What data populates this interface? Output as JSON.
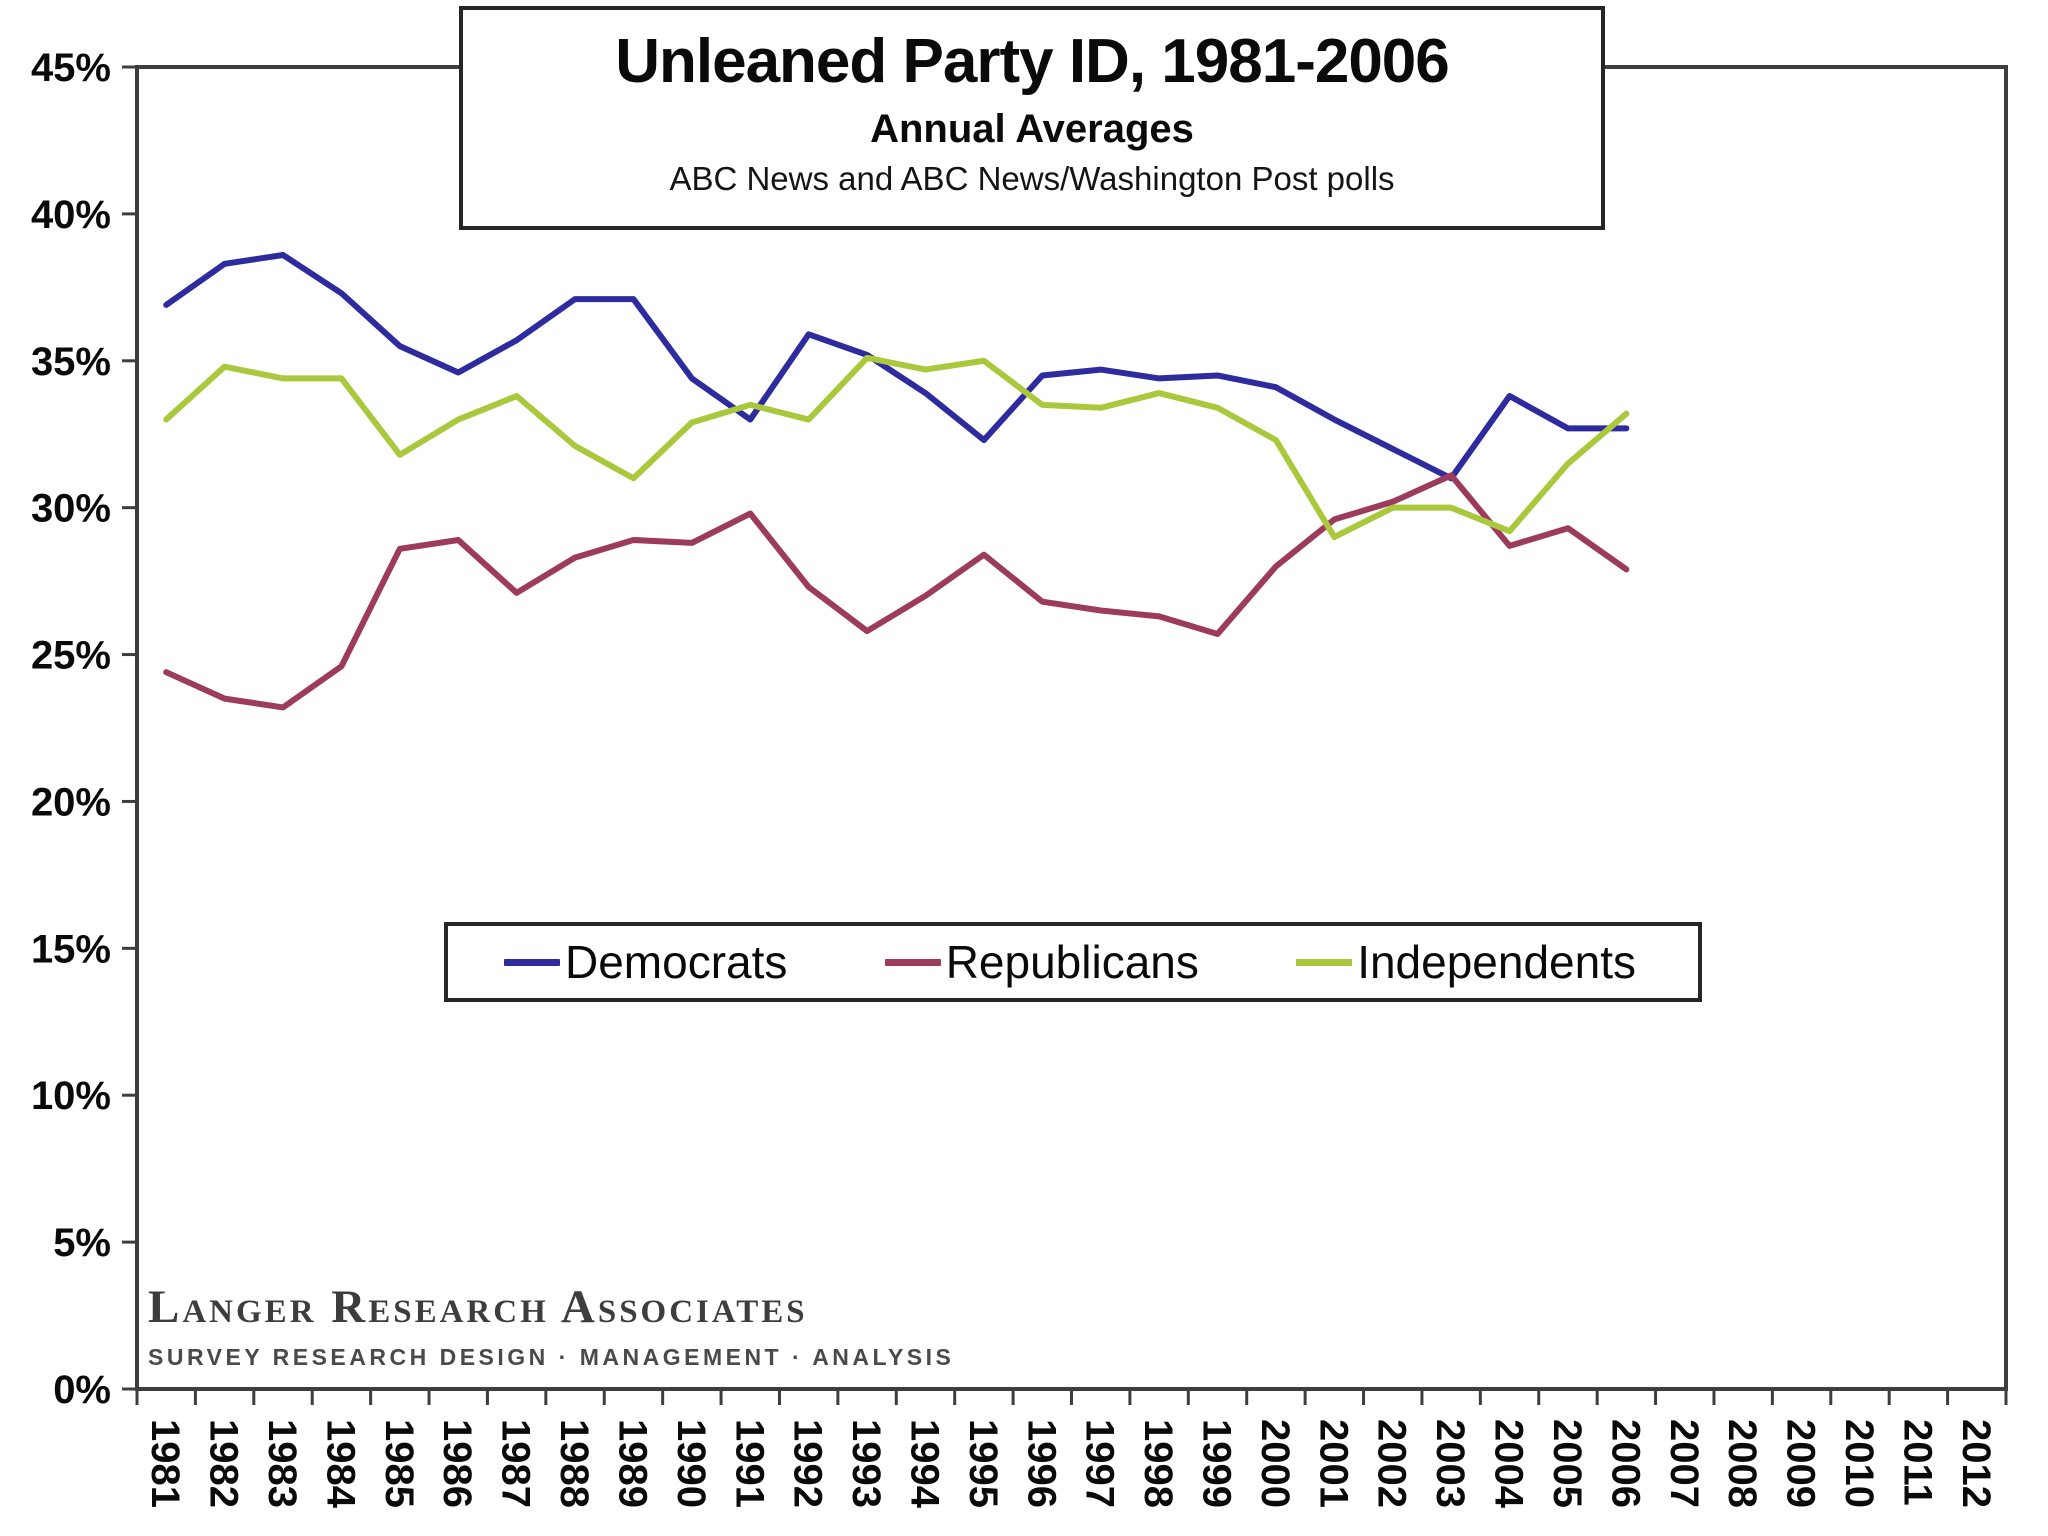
{
  "logo": {
    "name": "Langer Research Associates",
    "tagline": "SURVEY RESEARCH DESIGN · MANAGEMENT · ANALYSIS"
  },
  "frame_color": "#3e3e3e",
  "chart_data": {
    "type": "line",
    "title": "Unleaned Party ID, 1981-2006",
    "subtitle": "Annual Averages",
    "source": "ABC News and ABC News/Washington Post polls",
    "xlabel": "",
    "ylabel": "",
    "grid": false,
    "legend_position": "inside-center-bottom",
    "ylim": [
      0,
      45
    ],
    "y_tick_step": 5,
    "y_tick_labels": [
      "0%",
      "5%",
      "10%",
      "15%",
      "20%",
      "25%",
      "30%",
      "35%",
      "40%",
      "45%"
    ],
    "x_axis_years": [
      1981,
      1982,
      1983,
      1984,
      1985,
      1986,
      1987,
      1988,
      1989,
      1990,
      1991,
      1992,
      1993,
      1994,
      1995,
      1996,
      1997,
      1998,
      1999,
      2000,
      2001,
      2002,
      2003,
      2004,
      2005,
      2006,
      2007,
      2008,
      2009,
      2010,
      2011,
      2012
    ],
    "x": [
      1981,
      1982,
      1983,
      1984,
      1985,
      1986,
      1987,
      1988,
      1989,
      1990,
      1991,
      1992,
      1993,
      1994,
      1995,
      1996,
      1997,
      1998,
      1999,
      2000,
      2001,
      2002,
      2003,
      2004,
      2005,
      2006
    ],
    "series": [
      {
        "name": "Democrats",
        "color": "#2d2b9e",
        "values": [
          36.9,
          38.3,
          38.6,
          37.3,
          35.5,
          34.6,
          35.7,
          37.1,
          37.1,
          34.4,
          33.0,
          35.9,
          35.2,
          33.9,
          32.3,
          34.5,
          34.7,
          34.4,
          34.5,
          34.1,
          33.0,
          32.0,
          31.0,
          33.8,
          32.7,
          32.7
        ]
      },
      {
        "name": "Republicans",
        "color": "#9d3b5d",
        "values": [
          24.4,
          23.5,
          23.2,
          24.6,
          28.6,
          28.9,
          27.1,
          28.3,
          28.9,
          28.8,
          29.8,
          27.3,
          25.8,
          27.0,
          28.4,
          26.8,
          26.5,
          26.3,
          25.7,
          28.0,
          29.6,
          30.2,
          31.1,
          28.7,
          29.3,
          27.9
        ]
      },
      {
        "name": "Independents",
        "color": "#a9c83c",
        "values": [
          33.0,
          34.8,
          34.4,
          34.4,
          31.8,
          33.0,
          33.8,
          32.1,
          31.0,
          32.9,
          33.5,
          33.0,
          35.1,
          34.7,
          35.0,
          33.5,
          33.4,
          33.9,
          33.4,
          32.3,
          29.0,
          30.0,
          30.0,
          29.2,
          31.5,
          33.2
        ]
      }
    ]
  }
}
